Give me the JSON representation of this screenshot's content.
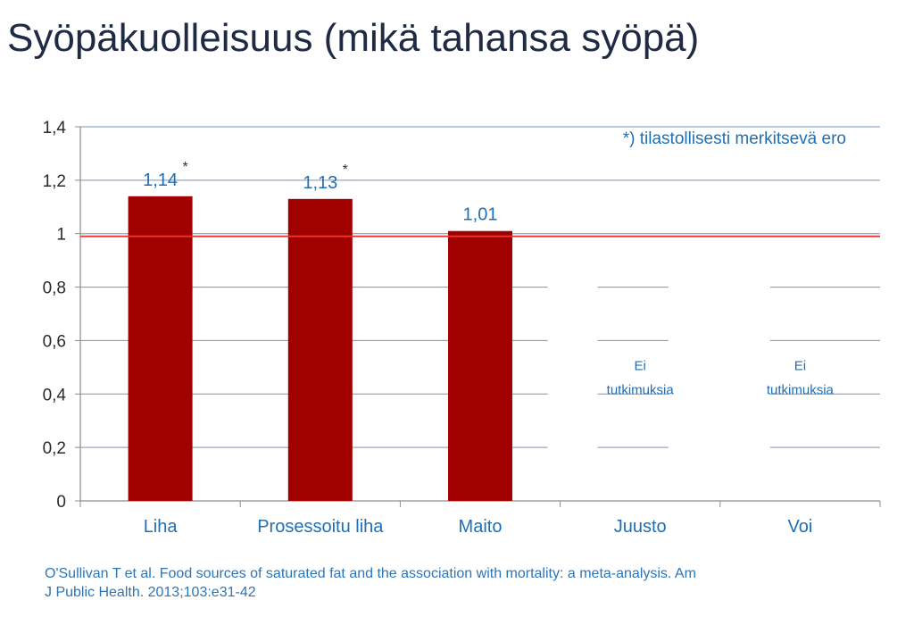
{
  "slide": {
    "title": "Syöpäkuolleisuus (mikä tahansa syöpä)",
    "source_line1": "O'Sullivan T et al. Food sources of saturated fat and the association with mortality: a meta-analysis. Am",
    "source_line2": "J Public Health. 2013;103:e31-42"
  },
  "chart_data": {
    "type": "bar",
    "categories": [
      "Liha",
      "Prosessoitu liha",
      "Maito",
      "Juusto",
      "Voi"
    ],
    "values": [
      1.14,
      1.13,
      1.01,
      null,
      null
    ],
    "data_labels": [
      "1,14",
      "1,13",
      "1,01",
      null,
      null
    ],
    "significant": [
      true,
      true,
      false,
      false,
      false
    ],
    "significance_marker": "*",
    "no_data_text_line1": "Ei",
    "no_data_text_line2": "tutkimuksia",
    "y_ticks": [
      "0",
      "0,2",
      "0,4",
      "0,6",
      "0,8",
      "1",
      "1,2",
      "1,4"
    ],
    "y_tick_values": [
      0,
      0.2,
      0.4,
      0.6,
      0.8,
      1.0,
      1.2,
      1.4
    ],
    "ylim": [
      0,
      1.4
    ],
    "reference_line": 0.99,
    "annotation": "*) tilastollisesti merkitsevä ero",
    "grid": true,
    "colors": {
      "bar": "#a00000",
      "reference": "#e8352e",
      "grid": "#4a6fa5",
      "text": "#1f6fb5",
      "axis": "#8c8c8c"
    }
  }
}
